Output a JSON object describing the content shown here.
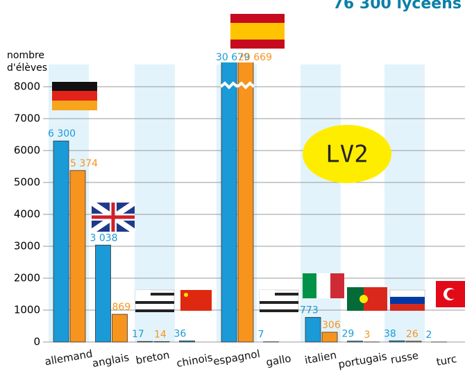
{
  "chart_data": {
    "type": "bar",
    "title": "76 300 lycéens",
    "y_label_lines": [
      "nombre",
      "d'élèves"
    ],
    "annotation": "LV2",
    "categories": [
      "allemand",
      "anglais",
      "breton",
      "chinois",
      "espagnol",
      "gallo",
      "italien",
      "portugais",
      "russe",
      "turc"
    ],
    "series": [
      {
        "color": "#1a9ad6",
        "values": [
          6300,
          3038,
          17,
          36,
          30679,
          7,
          773,
          29,
          38,
          2
        ],
        "value_labels": [
          "6 300",
          "3 038",
          "17",
          "36",
          "30 679",
          "7",
          "773",
          "29",
          "38",
          "2"
        ]
      },
      {
        "color": "#f7941d",
        "values": [
          5374,
          869,
          14,
          null,
          20669,
          null,
          306,
          3,
          26,
          null
        ],
        "value_labels": [
          "5 374",
          "869",
          "14",
          null,
          "20 669",
          null,
          "306",
          "3",
          "26",
          null
        ]
      }
    ],
    "ylim": [
      0,
      8700
    ],
    "yticks": [
      0,
      1000,
      2000,
      3000,
      4000,
      5000,
      6000,
      7000,
      8000
    ],
    "grid": true
  }
}
